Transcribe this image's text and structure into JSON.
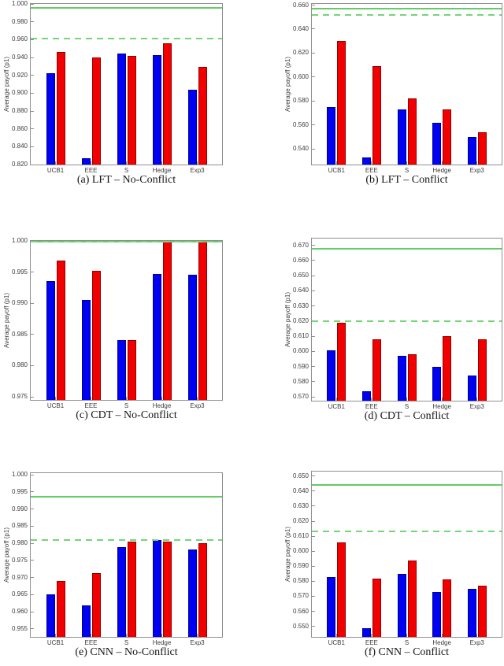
{
  "colors": {
    "blue_bar": "#0000f2",
    "red_bar": "#f20000",
    "solid_line": "#63cc66",
    "dashed_line": "#74d677",
    "axis": "#8f8f8f",
    "tick_text": "#3c3c3c"
  },
  "chart_data": [
    {
      "type": "bar",
      "caption": "(a) LFT – No-Conflict",
      "ylabel": "Average payoff (p1)",
      "categories": [
        "UCB1",
        "EEE",
        "S",
        "Hedge",
        "Exp3"
      ],
      "series": [
        {
          "name": "blue",
          "values": [
            0.922,
            0.827,
            0.944,
            0.943,
            0.904
          ]
        },
        {
          "name": "red",
          "values": [
            0.946,
            0.94,
            0.942,
            0.956,
            0.929
          ]
        }
      ],
      "ylim": [
        0.82,
        1.0
      ],
      "yticks": [
        0.82,
        0.84,
        0.86,
        0.88,
        0.9,
        0.92,
        0.94,
        0.96,
        0.98,
        1.0
      ],
      "ref_lines": {
        "solid": 0.996,
        "dashed": 0.961
      },
      "grid": false,
      "legend": null
    },
    {
      "type": "bar",
      "caption": "(b) LFT – Conflict",
      "ylabel": "Average payoff (p1)",
      "categories": [
        "UCB1",
        "EEE",
        "S",
        "Hedge",
        "Exp3"
      ],
      "series": [
        {
          "name": "blue",
          "values": [
            0.575,
            0.533,
            0.573,
            0.562,
            0.55
          ]
        },
        {
          "name": "red",
          "values": [
            0.63,
            0.609,
            0.582,
            0.573,
            0.554
          ]
        }
      ],
      "ylim": [
        0.527,
        0.661
      ],
      "yticks": [
        0.54,
        0.56,
        0.58,
        0.6,
        0.62,
        0.64,
        0.66
      ],
      "ref_lines": {
        "solid": 0.657,
        "dashed": 0.652
      },
      "grid": false,
      "legend": null
    },
    {
      "type": "bar",
      "caption": "(c) CDT – No-Conflict",
      "ylabel": "Average payoff (p1)",
      "categories": [
        "UCB1",
        "EEE",
        "S",
        "Hedge",
        "Exp3"
      ],
      "series": [
        {
          "name": "blue",
          "values": [
            0.9936,
            0.9905,
            0.9841,
            0.9947,
            0.9946
          ]
        },
        {
          "name": "red",
          "values": [
            0.9968,
            0.9952,
            0.9841,
            1.0,
            1.0
          ]
        }
      ],
      "ylim": [
        0.9745,
        1.0
      ],
      "yticks": [
        0.975,
        0.98,
        0.985,
        0.99,
        0.995,
        1.0
      ],
      "ref_lines": {
        "solid": 1.0,
        "dashed": 1.0
      },
      "grid": false,
      "legend": null
    },
    {
      "type": "bar",
      "caption": "(d) CDT – Conflict",
      "ylabel": "Average payoff (p1)",
      "categories": [
        "UCB1",
        "EEE",
        "S",
        "Hedge",
        "Exp3"
      ],
      "series": [
        {
          "name": "blue",
          "values": [
            0.601,
            0.574,
            0.597,
            0.59,
            0.584
          ]
        },
        {
          "name": "red",
          "values": [
            0.619,
            0.608,
            0.598,
            0.61,
            0.608
          ]
        }
      ],
      "ylim": [
        0.5675,
        0.6745
      ],
      "yticks": [
        0.57,
        0.58,
        0.59,
        0.6,
        0.61,
        0.62,
        0.63,
        0.64,
        0.65,
        0.66,
        0.67
      ],
      "ref_lines": {
        "solid": 0.6675,
        "dashed": 0.62
      },
      "grid": false,
      "legend": null
    },
    {
      "type": "bar",
      "caption": "(e) CNN – No-Conflict",
      "ylabel": "Average payoff (p1)",
      "categories": [
        "UCB1",
        "EEE",
        "S",
        "Hedge",
        "Exp3"
      ],
      "series": [
        {
          "name": "blue",
          "values": [
            0.965,
            0.962,
            0.979,
            0.981,
            0.9783
          ]
        },
        {
          "name": "red",
          "values": [
            0.969,
            0.9713,
            0.9805,
            0.9805,
            0.98
          ]
        }
      ],
      "ylim": [
        0.9527,
        1.0005
      ],
      "yticks": [
        0.955,
        0.96,
        0.965,
        0.97,
        0.975,
        0.98,
        0.985,
        0.99,
        0.995,
        1.0
      ],
      "ref_lines": {
        "solid": 0.9935,
        "dashed": 0.981
      },
      "grid": false,
      "legend": null
    },
    {
      "type": "bar",
      "caption": "(f) CNN – Conflict",
      "ylabel": "Average payoff (p1)",
      "categories": [
        "UCB1",
        "EEE",
        "S",
        "Hedge",
        "Exp3"
      ],
      "series": [
        {
          "name": "blue",
          "values": [
            0.583,
            0.549,
            0.585,
            0.573,
            0.575
          ]
        },
        {
          "name": "red",
          "values": [
            0.606,
            0.582,
            0.594,
            0.581,
            0.577
          ]
        }
      ],
      "ylim": [
        0.543,
        0.653
      ],
      "yticks": [
        0.55,
        0.56,
        0.57,
        0.58,
        0.59,
        0.6,
        0.61,
        0.62,
        0.63,
        0.64,
        0.65
      ],
      "ref_lines": {
        "solid": 0.644,
        "dashed": 0.613
      },
      "grid": false,
      "legend": null
    }
  ]
}
